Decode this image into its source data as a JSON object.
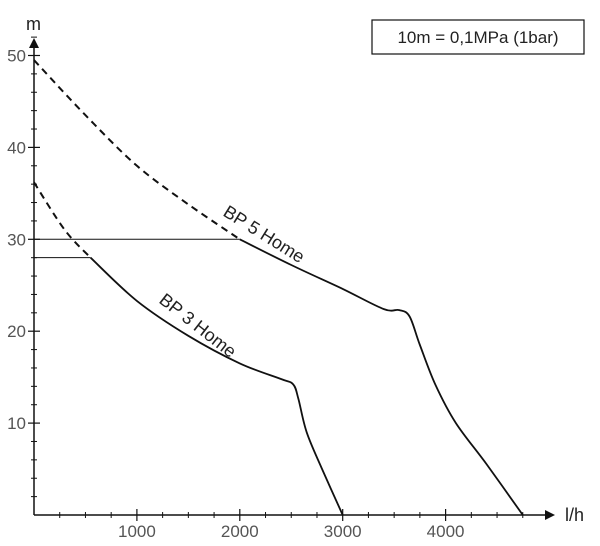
{
  "chart_data": {
    "type": "line",
    "title": "",
    "xlabel": "l/h",
    "ylabel": "m",
    "xlim": [
      0,
      4900
    ],
    "ylim": [
      0,
      52
    ],
    "x_ticks": [
      1000,
      2000,
      3000,
      4000
    ],
    "y_ticks": [
      10,
      20,
      30,
      40,
      50
    ],
    "grid": false,
    "note": "10m = 0,1MPa (1bar)",
    "series": [
      {
        "name": "BP 5 Home",
        "dashed_until_x": 2000,
        "points": [
          [
            0,
            49.5
          ],
          [
            500,
            43.5
          ],
          [
            1000,
            38
          ],
          [
            1500,
            33.8
          ],
          [
            2000,
            30
          ],
          [
            2500,
            27.2
          ],
          [
            3000,
            24.6
          ],
          [
            3400,
            22.4
          ],
          [
            3550,
            22.3
          ],
          [
            3650,
            21.6
          ],
          [
            3750,
            18.5
          ],
          [
            3900,
            14.2
          ],
          [
            4100,
            10
          ],
          [
            4400,
            5.5
          ],
          [
            4750,
            0
          ]
        ]
      },
      {
        "name": "BP 3 Home",
        "dashed_until_x": 550,
        "points": [
          [
            0,
            36.2
          ],
          [
            300,
            31
          ],
          [
            550,
            28
          ],
          [
            1000,
            23.3
          ],
          [
            1500,
            19.5
          ],
          [
            2000,
            16.5
          ],
          [
            2400,
            14.8
          ],
          [
            2520,
            14.2
          ],
          [
            2570,
            12.6
          ],
          [
            2650,
            9
          ],
          [
            2800,
            5
          ],
          [
            3000,
            0
          ]
        ]
      }
    ],
    "reference_lines": [
      {
        "y": 30,
        "x_end": 2000
      },
      {
        "y": 28,
        "x_end": 550
      }
    ]
  }
}
